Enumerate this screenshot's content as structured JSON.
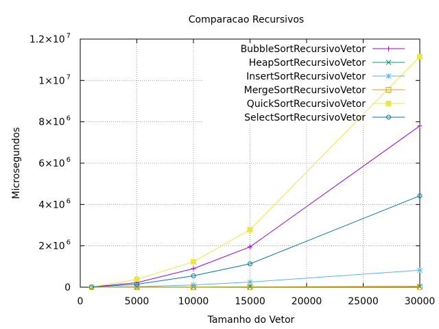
{
  "chart_data": {
    "type": "line",
    "title": "Comparacao Recursivos",
    "xlabel": "Tamanho do Vetor",
    "ylabel": "Microsegundos",
    "xlim": [
      0,
      30000
    ],
    "ylim": [
      0,
      12000000
    ],
    "x_ticks": [
      0,
      5000,
      10000,
      15000,
      20000,
      25000,
      30000
    ],
    "x_tick_labels": [
      "0",
      "5000",
      "10000",
      "15000",
      "20000",
      "25000",
      "30000"
    ],
    "y_ticks": [
      0,
      2000000,
      4000000,
      6000000,
      8000000,
      10000000,
      12000000
    ],
    "y_tick_labels": [
      {
        "mant": "0",
        "exp": ""
      },
      {
        "mant": "2×10",
        "exp": "6"
      },
      {
        "mant": "4×10",
        "exp": "6"
      },
      {
        "mant": "6×10",
        "exp": "6"
      },
      {
        "mant": "8×10",
        "exp": "6"
      },
      {
        "mant": "1×10",
        "exp": "7"
      },
      {
        "mant": "1.2×10",
        "exp": "7"
      }
    ],
    "grid": true,
    "legend_position": "top-right",
    "x": [
      1000,
      5000,
      10000,
      15000,
      30000
    ],
    "series": [
      {
        "name": "BubbleSortRecursivoVetor",
        "color": "#9400d3",
        "marker": "plus",
        "values": [
          8000,
          220000,
          900000,
          1950000,
          7800000
        ]
      },
      {
        "name": "HeapSortRecursivoVetor",
        "color": "#009e73",
        "marker": "cross",
        "values": [
          1000,
          5000,
          10000,
          15000,
          35000
        ]
      },
      {
        "name": "InsertSortRecursivoVetor",
        "color": "#56b4e9",
        "marker": "asterisk",
        "values": [
          3000,
          30000,
          110000,
          250000,
          820000
        ]
      },
      {
        "name": "MergeSortRecursivoVetor",
        "color": "#e69f00",
        "marker": "square-open",
        "values": [
          500,
          2000,
          4000,
          6000,
          12000
        ]
      },
      {
        "name": "QuickSortRecursivoVetor",
        "color": "#f0e442",
        "marker": "square-filled",
        "values": [
          10000,
          380000,
          1230000,
          2780000,
          11150000
        ]
      },
      {
        "name": "SelectSortRecursivoVetor",
        "color": "#0072b2",
        "marker": "circle-open",
        "values": [
          5000,
          140000,
          550000,
          1130000,
          4420000
        ]
      }
    ]
  }
}
